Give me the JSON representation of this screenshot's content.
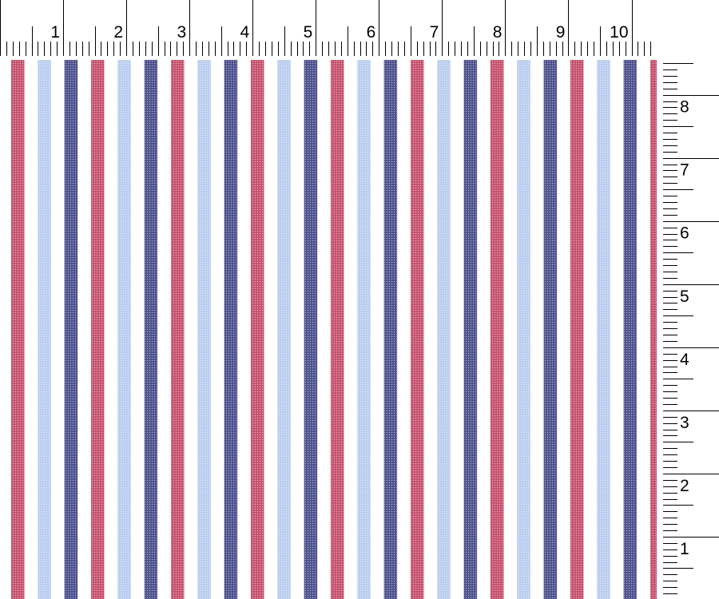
{
  "rulers": {
    "top_labels": [
      "1",
      "2",
      "3",
      "4",
      "5",
      "6",
      "7",
      "8",
      "9",
      "10"
    ],
    "right_labels": [
      "1",
      "2",
      "3",
      "4",
      "5",
      "6",
      "7",
      "8"
    ],
    "subdivisions_per_unit": 10
  },
  "fabric": {
    "pattern": "vertical-stripes",
    "stripe_sequence": [
      {
        "name": "red",
        "color": "#c54f6c"
      },
      {
        "name": "light-blue",
        "color": "#b9cdef"
      },
      {
        "name": "navy",
        "color": "#4b4f8c"
      }
    ],
    "background": "#ffffff"
  }
}
